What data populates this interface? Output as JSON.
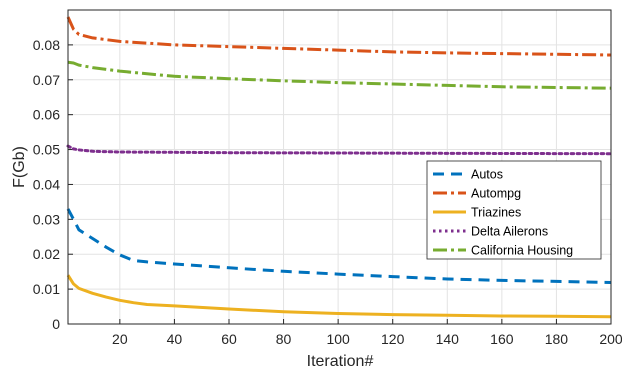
{
  "chart_data": {
    "type": "line",
    "title": "",
    "xlabel": "Iteration#",
    "ylabel": "F(Gb)",
    "xlim": [
      1,
      200
    ],
    "ylim": [
      0,
      0.09
    ],
    "x_ticks": [
      20,
      40,
      60,
      80,
      100,
      120,
      140,
      160,
      180,
      200
    ],
    "y_ticks": [
      0,
      0.01,
      0.02,
      0.03,
      0.04,
      0.05,
      0.06,
      0.07,
      0.08
    ],
    "y_tick_labels": [
      "0",
      "0.01",
      "0.02",
      "0.03",
      "0.04",
      "0.05",
      "0.06",
      "0.07",
      "0.08"
    ],
    "grid": true,
    "legend_position": "right",
    "series": [
      {
        "name": "Autos",
        "color": "#0072bd",
        "style": "dashed",
        "x": [
          1,
          3,
          5,
          10,
          15,
          20,
          25,
          30,
          40,
          60,
          80,
          100,
          120,
          140,
          160,
          180,
          200
        ],
        "y": [
          0.033,
          0.03,
          0.027,
          0.0245,
          0.022,
          0.0198,
          0.0182,
          0.0178,
          0.0172,
          0.0161,
          0.0151,
          0.0143,
          0.0136,
          0.0129,
          0.0125,
          0.0122,
          0.0119
        ]
      },
      {
        "name": "Autompg",
        "color": "#d95319",
        "style": "dashdot",
        "x": [
          1,
          3,
          5,
          10,
          20,
          40,
          60,
          80,
          100,
          120,
          140,
          160,
          180,
          200
        ],
        "y": [
          0.088,
          0.0845,
          0.083,
          0.082,
          0.081,
          0.08,
          0.0795,
          0.079,
          0.0785,
          0.078,
          0.0777,
          0.0775,
          0.0773,
          0.0771
        ]
      },
      {
        "name": "Triazines",
        "color": "#edb120",
        "style": "solid",
        "x": [
          1,
          3,
          5,
          10,
          15,
          20,
          25,
          30,
          40,
          60,
          80,
          100,
          120,
          140,
          160,
          180,
          200
        ],
        "y": [
          0.014,
          0.0115,
          0.0102,
          0.0088,
          0.0077,
          0.0068,
          0.0061,
          0.0056,
          0.0052,
          0.0043,
          0.0035,
          0.003,
          0.0027,
          0.0025,
          0.0023,
          0.0022,
          0.0021
        ]
      },
      {
        "name": "Delta Ailerons",
        "color": "#7e2f8e",
        "style": "dotted",
        "x": [
          1,
          3,
          5,
          10,
          20,
          40,
          60,
          100,
          150,
          200
        ],
        "y": [
          0.051,
          0.0502,
          0.0499,
          0.0495,
          0.0493,
          0.0492,
          0.0491,
          0.049,
          0.0489,
          0.0488
        ]
      },
      {
        "name": "California Housing",
        "color": "#77ac30",
        "style": "dashdot",
        "x": [
          1,
          3,
          5,
          10,
          20,
          30,
          40,
          60,
          80,
          100,
          120,
          140,
          160,
          180,
          200
        ],
        "y": [
          0.075,
          0.0748,
          0.0742,
          0.0735,
          0.0725,
          0.0717,
          0.071,
          0.0703,
          0.0697,
          0.0692,
          0.0688,
          0.0684,
          0.068,
          0.0678,
          0.0676
        ]
      }
    ]
  }
}
